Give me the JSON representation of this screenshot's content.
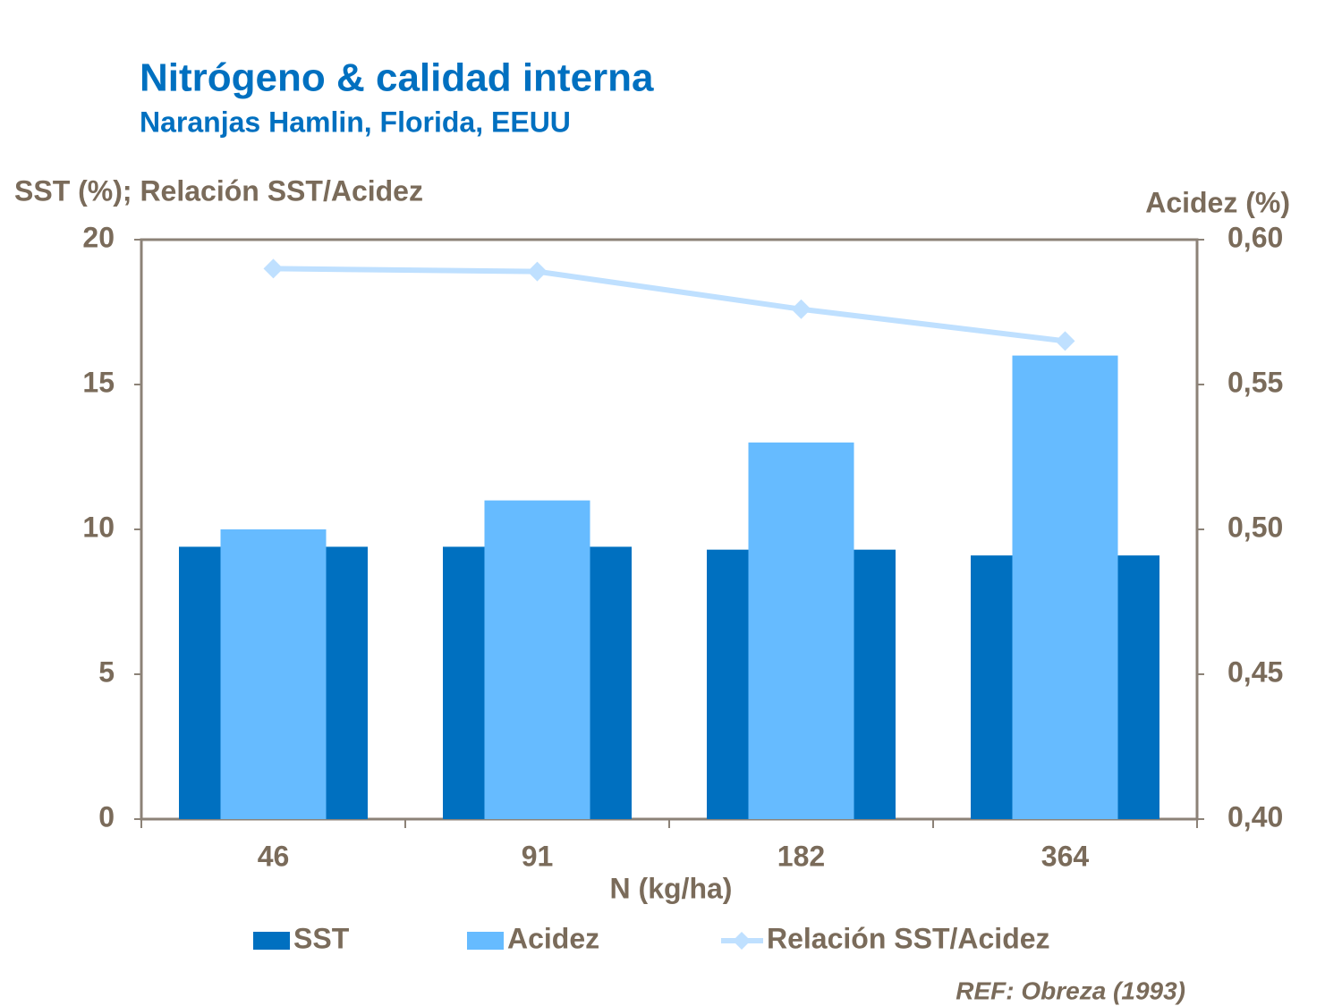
{
  "chart_data": {
    "type": "bar_line",
    "title": "Nitrógeno & calidad interna",
    "subtitle": "Naranjas Hamlin, Florida, EEUU",
    "y_label": "SST (%); Relación SST/Acidez",
    "y2_label": "Acidez (%)",
    "x_label": "N (kg/ha)",
    "reference": "REF: Obreza (1993)",
    "categories": [
      "46",
      "91",
      "182",
      "364"
    ],
    "series": [
      {
        "name": "SST",
        "type": "bar",
        "color": "#0070c0",
        "values": [
          9.4,
          9.4,
          9.3,
          9.1
        ]
      },
      {
        "name": "Acidez",
        "type": "bar",
        "axis": "y2",
        "color": "#66bbff",
        "values": [
          0.5,
          0.51,
          0.53,
          0.56
        ]
      },
      {
        "name": "Relación SST/Acidez",
        "type": "line",
        "color": "#bfe0ff",
        "values": [
          19.0,
          18.9,
          17.6,
          16.5
        ]
      }
    ],
    "ylim": [
      0,
      20
    ],
    "yticks": [
      0,
      5,
      10,
      15,
      20
    ],
    "y2lim": [
      0.4,
      0.6
    ],
    "y2ticks": [
      {
        "value": 0.4,
        "label": "0,40"
      },
      {
        "value": 0.45,
        "label": "0,45"
      },
      {
        "value": 0.5,
        "label": "0,50"
      },
      {
        "value": 0.55,
        "label": "0,55"
      },
      {
        "value": 0.6,
        "label": "0,60"
      }
    ]
  }
}
